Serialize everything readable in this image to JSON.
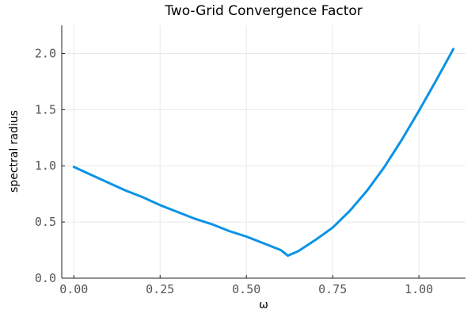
{
  "chart_data": {
    "type": "line",
    "title": "Two-Grid Convergence Factor",
    "xlabel": "ω",
    "ylabel": "spectral radius",
    "xlim": [
      -0.035,
      1.135
    ],
    "ylim": [
      0.0,
      2.25
    ],
    "xticks": [
      0.0,
      0.25,
      0.5,
      0.75,
      1.0
    ],
    "xtick_labels": [
      "0.00",
      "0.25",
      "0.50",
      "0.75",
      "1.00"
    ],
    "yticks": [
      0.0,
      0.5,
      1.0,
      1.5,
      2.0
    ],
    "ytick_labels": [
      "0.0",
      "0.5",
      "1.0",
      "1.5",
      "2.0"
    ],
    "grid": true,
    "legend": false,
    "series": [
      {
        "color": "#0a93e6",
        "x": [
          0.0,
          0.05,
          0.1,
          0.15,
          0.2,
          0.25,
          0.3,
          0.35,
          0.4,
          0.45,
          0.5,
          0.55,
          0.6,
          0.62,
          0.65,
          0.7,
          0.75,
          0.8,
          0.85,
          0.9,
          0.95,
          1.0,
          1.05,
          1.1
        ],
        "y": [
          0.99,
          0.92,
          0.85,
          0.78,
          0.72,
          0.65,
          0.59,
          0.53,
          0.48,
          0.42,
          0.37,
          0.31,
          0.25,
          0.2,
          0.24,
          0.34,
          0.45,
          0.6,
          0.78,
          0.99,
          1.23,
          1.49,
          1.76,
          2.04
        ]
      }
    ]
  }
}
